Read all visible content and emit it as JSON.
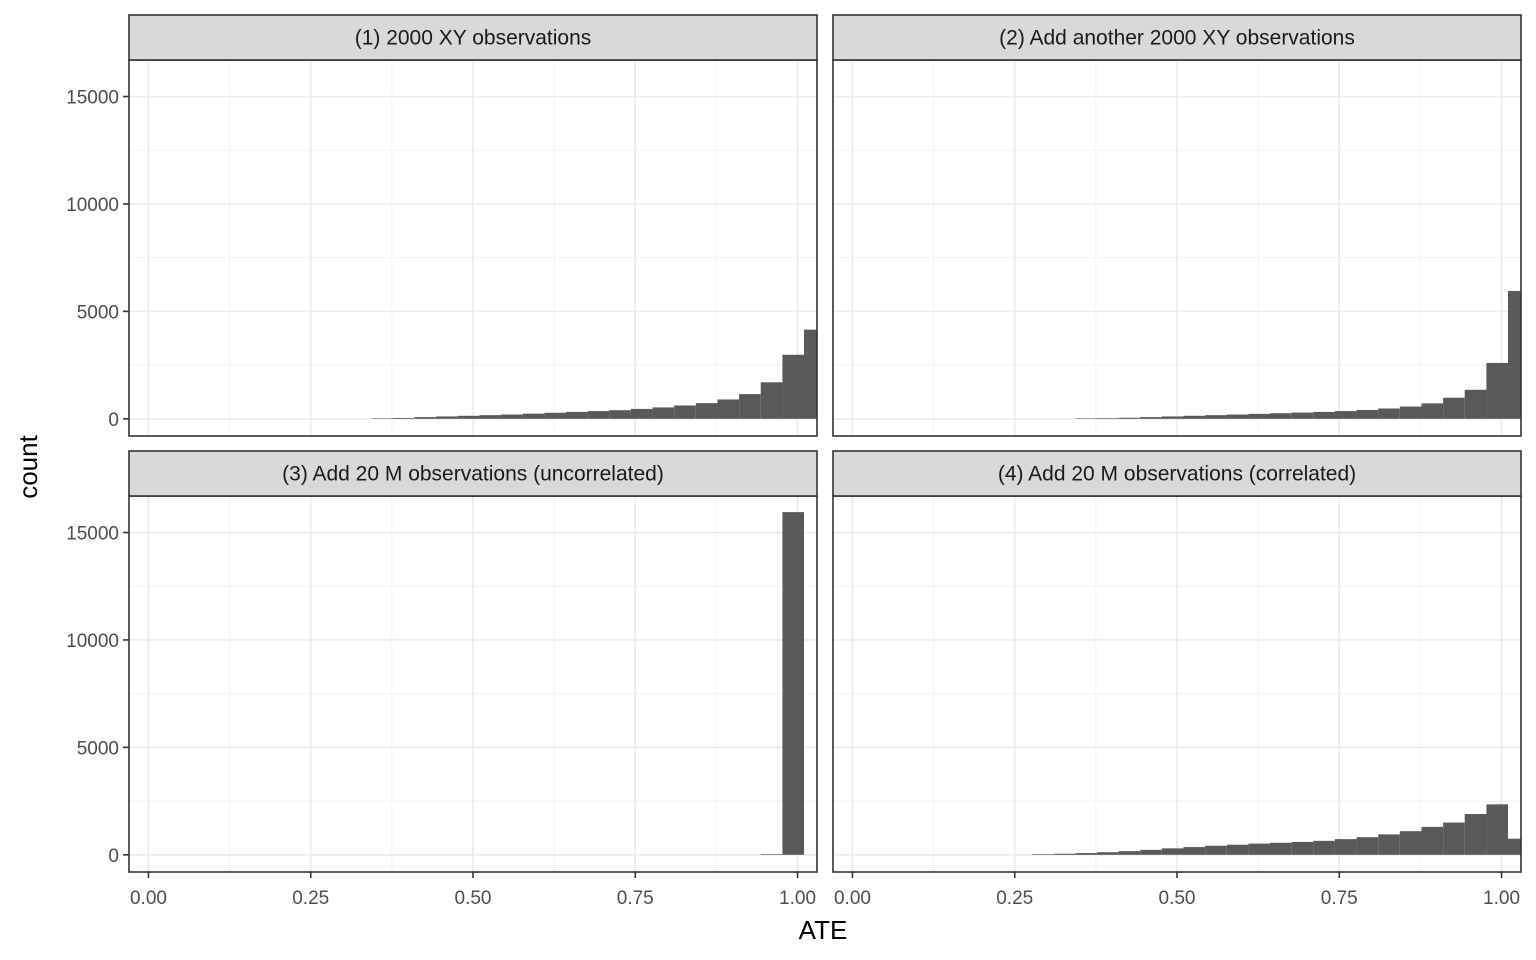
{
  "chart_data": {
    "type": "bar",
    "subtype": "faceted-histogram",
    "xlabel": "ATE",
    "ylabel": "count",
    "xlim": [
      -0.03,
      1.03
    ],
    "ylim": [
      -800,
      16700
    ],
    "x_ticks": [
      0.0,
      0.25,
      0.5,
      0.75,
      1.0
    ],
    "x_tick_labels": [
      "0.00",
      "0.25",
      "0.50",
      "0.75",
      "1.00"
    ],
    "y_ticks": [
      0,
      5000,
      10000,
      15000
    ],
    "y_tick_labels": [
      "0",
      "5000",
      "10000",
      "15000"
    ],
    "shared_axes": true,
    "bin_width": 0.0333,
    "bar_color": "#595959",
    "grid": true,
    "facets": [
      {
        "title": "(1) 2000 XY observations",
        "bins": [
          {
            "x0": 0.3433,
            "x1": 0.3767,
            "count": 20
          },
          {
            "x0": 0.3767,
            "x1": 0.41,
            "count": 40
          },
          {
            "x0": 0.41,
            "x1": 0.4433,
            "count": 80
          },
          {
            "x0": 0.4433,
            "x1": 0.4767,
            "count": 110
          },
          {
            "x0": 0.4767,
            "x1": 0.51,
            "count": 140
          },
          {
            "x0": 0.51,
            "x1": 0.5433,
            "count": 170
          },
          {
            "x0": 0.5433,
            "x1": 0.5767,
            "count": 200
          },
          {
            "x0": 0.5767,
            "x1": 0.61,
            "count": 240
          },
          {
            "x0": 0.61,
            "x1": 0.6433,
            "count": 280
          },
          {
            "x0": 0.6433,
            "x1": 0.6767,
            "count": 320
          },
          {
            "x0": 0.6767,
            "x1": 0.71,
            "count": 360
          },
          {
            "x0": 0.71,
            "x1": 0.7433,
            "count": 400
          },
          {
            "x0": 0.7433,
            "x1": 0.7767,
            "count": 460
          },
          {
            "x0": 0.7767,
            "x1": 0.81,
            "count": 530
          },
          {
            "x0": 0.81,
            "x1": 0.8433,
            "count": 620
          },
          {
            "x0": 0.8433,
            "x1": 0.8767,
            "count": 730
          },
          {
            "x0": 0.8767,
            "x1": 0.91,
            "count": 900
          },
          {
            "x0": 0.91,
            "x1": 0.9433,
            "count": 1150
          },
          {
            "x0": 0.9433,
            "x1": 0.9767,
            "count": 1700
          },
          {
            "x0": 0.9767,
            "x1": 1.01,
            "count": 2980
          },
          {
            "x0": 1.01,
            "x1": 1.0433,
            "count": 4150
          }
        ]
      },
      {
        "title": "(2) Add another 2000 XY observations",
        "bins": [
          {
            "x0": 0.3433,
            "x1": 0.3767,
            "count": 20
          },
          {
            "x0": 0.3767,
            "x1": 0.41,
            "count": 30
          },
          {
            "x0": 0.41,
            "x1": 0.4433,
            "count": 50
          },
          {
            "x0": 0.4433,
            "x1": 0.4767,
            "count": 80
          },
          {
            "x0": 0.4767,
            "x1": 0.51,
            "count": 110
          },
          {
            "x0": 0.51,
            "x1": 0.5433,
            "count": 140
          },
          {
            "x0": 0.5433,
            "x1": 0.5767,
            "count": 170
          },
          {
            "x0": 0.5767,
            "x1": 0.61,
            "count": 200
          },
          {
            "x0": 0.61,
            "x1": 0.6433,
            "count": 230
          },
          {
            "x0": 0.6433,
            "x1": 0.6767,
            "count": 260
          },
          {
            "x0": 0.6767,
            "x1": 0.71,
            "count": 290
          },
          {
            "x0": 0.71,
            "x1": 0.7433,
            "count": 320
          },
          {
            "x0": 0.7433,
            "x1": 0.7767,
            "count": 360
          },
          {
            "x0": 0.7767,
            "x1": 0.81,
            "count": 410
          },
          {
            "x0": 0.81,
            "x1": 0.8433,
            "count": 480
          },
          {
            "x0": 0.8433,
            "x1": 0.8767,
            "count": 570
          },
          {
            "x0": 0.8767,
            "x1": 0.91,
            "count": 720
          },
          {
            "x0": 0.91,
            "x1": 0.9433,
            "count": 980
          },
          {
            "x0": 0.9433,
            "x1": 0.9767,
            "count": 1350
          },
          {
            "x0": 0.9767,
            "x1": 1.01,
            "count": 2600
          },
          {
            "x0": 1.01,
            "x1": 1.0433,
            "count": 5950
          }
        ]
      },
      {
        "title": "(3) Add 20 M observations (uncorrelated)",
        "bins": [
          {
            "x0": 0.9433,
            "x1": 0.9767,
            "count": 30
          },
          {
            "x0": 0.9767,
            "x1": 1.01,
            "count": 15950
          }
        ]
      },
      {
        "title": "(4) Add 20 M observations (correlated)",
        "bins": [
          {
            "x0": 0.2767,
            "x1": 0.31,
            "count": 30
          },
          {
            "x0": 0.31,
            "x1": 0.3433,
            "count": 50
          },
          {
            "x0": 0.3433,
            "x1": 0.3767,
            "count": 80
          },
          {
            "x0": 0.3767,
            "x1": 0.41,
            "count": 120
          },
          {
            "x0": 0.41,
            "x1": 0.4433,
            "count": 170
          },
          {
            "x0": 0.4433,
            "x1": 0.4767,
            "count": 230
          },
          {
            "x0": 0.4767,
            "x1": 0.51,
            "count": 300
          },
          {
            "x0": 0.51,
            "x1": 0.5433,
            "count": 360
          },
          {
            "x0": 0.5433,
            "x1": 0.5767,
            "count": 420
          },
          {
            "x0": 0.5767,
            "x1": 0.61,
            "count": 470
          },
          {
            "x0": 0.61,
            "x1": 0.6433,
            "count": 520
          },
          {
            "x0": 0.6433,
            "x1": 0.6767,
            "count": 560
          },
          {
            "x0": 0.6767,
            "x1": 0.71,
            "count": 600
          },
          {
            "x0": 0.71,
            "x1": 0.7433,
            "count": 650
          },
          {
            "x0": 0.7433,
            "x1": 0.7767,
            "count": 730
          },
          {
            "x0": 0.7767,
            "x1": 0.81,
            "count": 820
          },
          {
            "x0": 0.81,
            "x1": 0.8433,
            "count": 950
          },
          {
            "x0": 0.8433,
            "x1": 0.8767,
            "count": 1100
          },
          {
            "x0": 0.8767,
            "x1": 0.91,
            "count": 1300
          },
          {
            "x0": 0.91,
            "x1": 0.9433,
            "count": 1500
          },
          {
            "x0": 0.9433,
            "x1": 0.9767,
            "count": 1900
          },
          {
            "x0": 0.9767,
            "x1": 1.01,
            "count": 2350
          },
          {
            "x0": 1.01,
            "x1": 1.0433,
            "count": 750
          }
        ]
      }
    ]
  }
}
